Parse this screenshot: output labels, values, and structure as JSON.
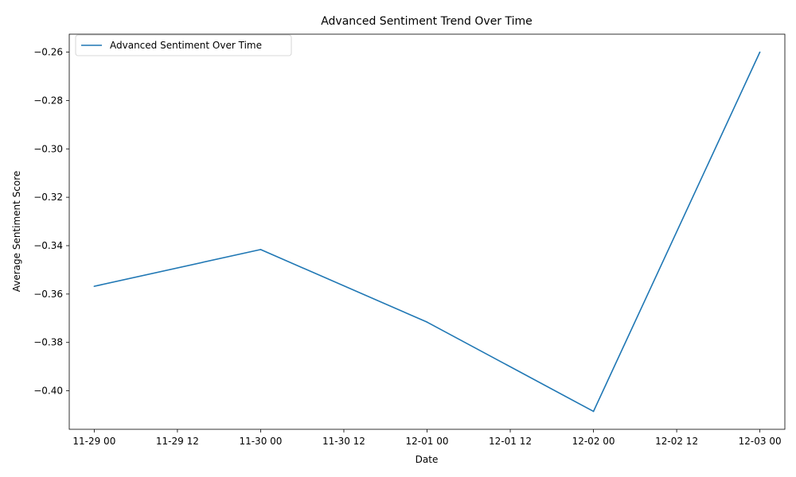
{
  "chart_data": {
    "type": "line",
    "title": "Advanced Sentiment Trend Over Time",
    "xlabel": "Date",
    "ylabel": "Average Sentiment Score",
    "legend": "top-left",
    "grid": false,
    "color": "#1f77b4",
    "series": [
      {
        "name": "Advanced Sentiment Over Time",
        "x": [
          "11-29 00",
          "11-30 00",
          "12-01 00",
          "12-02 00",
          "12-03 00"
        ],
        "values": [
          -0.3568,
          -0.3416,
          -0.3716,
          -0.4085,
          -0.26
        ]
      }
    ],
    "x_ticks": [
      "11-29 00",
      "11-29 12",
      "11-30 00",
      "11-30 12",
      "12-01 00",
      "12-01 12",
      "12-02 00",
      "12-02 12",
      "12-03 00"
    ],
    "x_range_hours": [
      -3.6,
      99.6
    ],
    "y_ticks": [
      -0.4,
      -0.38,
      -0.36,
      -0.34,
      -0.32,
      -0.3,
      -0.28,
      -0.26
    ],
    "y_tick_labels": [
      "−0.40",
      "−0.38",
      "−0.36",
      "−0.34",
      "−0.32",
      "−0.30",
      "−0.28",
      "−0.26"
    ],
    "ylim": [
      -0.4159,
      -0.2526
    ]
  }
}
